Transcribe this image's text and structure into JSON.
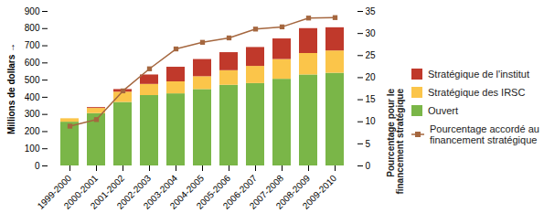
{
  "chart_data": {
    "type": "bar",
    "stacked": true,
    "legend": "right",
    "ylabel": "Millions de dollars",
    "y2label": "Pourcentage pour le financement stratégique",
    "categories": [
      "1999-2000",
      "2000-2001",
      "2001-2002",
      "2002-2003",
      "2003-2004",
      "2004-2005",
      "2005-2006",
      "2006-2007",
      "2007-2008",
      "2008-2009",
      "2009-2010"
    ],
    "ylim": [
      0,
      900
    ],
    "yticks": [
      0,
      100,
      200,
      300,
      400,
      500,
      600,
      700,
      800,
      900
    ],
    "y2lim": [
      0,
      35
    ],
    "y2ticks": [
      0,
      5,
      10,
      15,
      20,
      25,
      30,
      35
    ],
    "series": [
      {
        "name": "Ouvert",
        "color": "#7ab648",
        "values": [
          255,
          305,
          370,
          410,
          420,
          445,
          470,
          480,
          505,
          530,
          540
        ]
      },
      {
        "name": "Stratégique des IRSC",
        "color": "#fbc54a",
        "values": [
          20,
          30,
          60,
          65,
          70,
          75,
          85,
          100,
          115,
          125,
          130
        ]
      },
      {
        "name": "Stratégique de l'institut",
        "color": "#c0392b",
        "values": [
          0,
          5,
          15,
          55,
          85,
          100,
          105,
          110,
          120,
          145,
          135
        ]
      },
      {
        "name": "Pourcentage accordé au financement stratégique",
        "type": "line",
        "axis": "y2",
        "color": "#a5673f",
        "marker": "square",
        "values": [
          9,
          10.5,
          17,
          22,
          26.5,
          28,
          29,
          31,
          31.5,
          33.5,
          33.6
        ]
      }
    ]
  }
}
